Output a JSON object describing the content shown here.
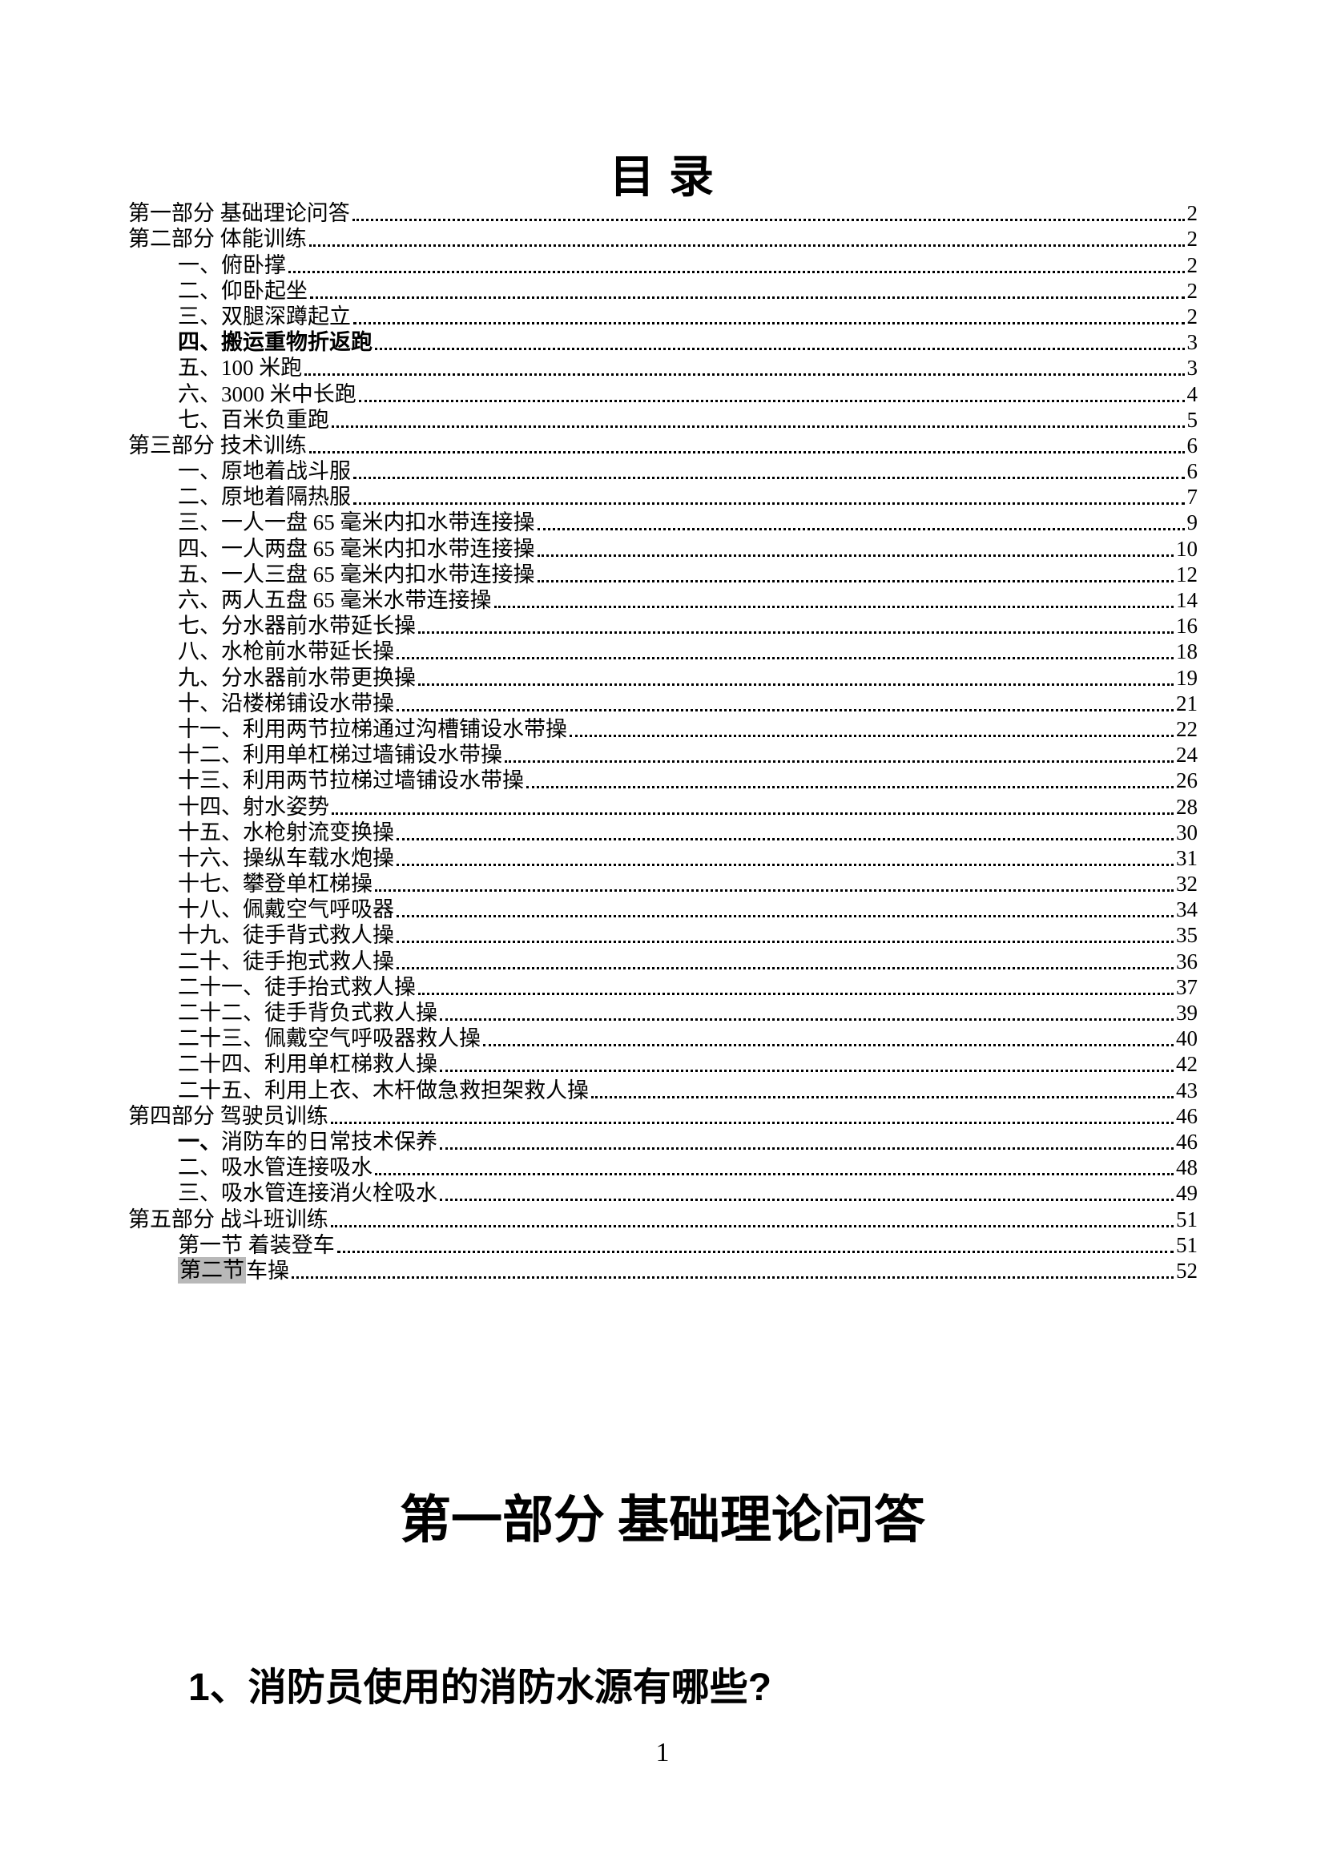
{
  "page": {
    "toc_title": "目 录",
    "footer_page_number": "1"
  },
  "styles": {
    "highlight_color": "#b8b8b8",
    "text_color": "#000000",
    "background_color": "#ffffff"
  },
  "toc": {
    "entries": [
      {
        "indent": 0,
        "prefix": "",
        "prefix_style": "",
        "bold": false,
        "text": "第一部分 基础理论问答",
        "page": "2"
      },
      {
        "indent": 0,
        "prefix": "",
        "prefix_style": "",
        "bold": false,
        "text": "第二部分 体能训练",
        "page": "2"
      },
      {
        "indent": 1,
        "prefix": "",
        "prefix_style": "",
        "bold": false,
        "text": "一、俯卧撑",
        "page": "2"
      },
      {
        "indent": 1,
        "prefix": "",
        "prefix_style": "",
        "bold": false,
        "text": "二、仰卧起坐",
        "page": "2"
      },
      {
        "indent": 1,
        "prefix": "",
        "prefix_style": "",
        "bold": false,
        "text": "三、双腿深蹲起立",
        "page": "2"
      },
      {
        "indent": 1,
        "prefix": "",
        "prefix_style": "",
        "bold": true,
        "text": "四、搬运重物折返跑",
        "page": "3"
      },
      {
        "indent": 1,
        "prefix": "",
        "prefix_style": "",
        "bold": false,
        "text": "五、100 米跑",
        "page": "3"
      },
      {
        "indent": 1,
        "prefix": "",
        "prefix_style": "",
        "bold": false,
        "text": "六、3000 米中长跑",
        "page": "4"
      },
      {
        "indent": 1,
        "prefix": "",
        "prefix_style": "",
        "bold": false,
        "text": "七、百米负重跑",
        "page": "5"
      },
      {
        "indent": 0,
        "prefix": "",
        "prefix_style": "",
        "bold": false,
        "text": "第三部分 技术训练",
        "page": "6"
      },
      {
        "indent": 1,
        "prefix": "",
        "prefix_style": "",
        "bold": false,
        "text": "一、原地着战斗服",
        "page": "6"
      },
      {
        "indent": 1,
        "prefix": "",
        "prefix_style": "",
        "bold": false,
        "text": "二、原地着隔热服",
        "page": "7"
      },
      {
        "indent": 1,
        "prefix": "",
        "prefix_style": "",
        "bold": false,
        "text": "三、一人一盘 65 毫米内扣水带连接操",
        "page": "9"
      },
      {
        "indent": 1,
        "prefix": "",
        "prefix_style": "",
        "bold": false,
        "text": "四、一人两盘 65 毫米内扣水带连接操",
        "page": "10"
      },
      {
        "indent": 1,
        "prefix": "",
        "prefix_style": "",
        "bold": false,
        "text": "五、一人三盘 65 毫米内扣水带连接操",
        "page": "12"
      },
      {
        "indent": 1,
        "prefix": "",
        "prefix_style": "",
        "bold": false,
        "text": "六、两人五盘 65 毫米水带连接操",
        "page": "14"
      },
      {
        "indent": 1,
        "prefix": "",
        "prefix_style": "",
        "bold": false,
        "text": "七、分水器前水带延长操",
        "page": "16"
      },
      {
        "indent": 1,
        "prefix": "",
        "prefix_style": "",
        "bold": false,
        "text": "八、水枪前水带延长操",
        "page": "18"
      },
      {
        "indent": 1,
        "prefix": "",
        "prefix_style": "",
        "bold": false,
        "text": "九、分水器前水带更换操",
        "page": "19"
      },
      {
        "indent": 1,
        "prefix": "",
        "prefix_style": "",
        "bold": false,
        "text": "十、沿楼梯铺设水带操",
        "page": "21"
      },
      {
        "indent": 1,
        "prefix": "",
        "prefix_style": "",
        "bold": false,
        "text": "十一、利用两节拉梯通过沟槽铺设水带操",
        "page": "22"
      },
      {
        "indent": 1,
        "prefix": "",
        "prefix_style": "",
        "bold": false,
        "text": "十二、利用单杠梯过墙铺设水带操",
        "page": "24"
      },
      {
        "indent": 1,
        "prefix": "",
        "prefix_style": "",
        "bold": false,
        "text": "十三、利用两节拉梯过墙铺设水带操",
        "page": "26"
      },
      {
        "indent": 1,
        "prefix": "",
        "prefix_style": "",
        "bold": false,
        "text": "十四、射水姿势",
        "page": "28"
      },
      {
        "indent": 1,
        "prefix": "",
        "prefix_style": "",
        "bold": false,
        "text": "十五、水枪射流变换操",
        "page": "30"
      },
      {
        "indent": 1,
        "prefix": "",
        "prefix_style": "",
        "bold": false,
        "text": "十六、操纵车载水炮操",
        "page": "31"
      },
      {
        "indent": 1,
        "prefix": "",
        "prefix_style": "",
        "bold": false,
        "text": "十七、攀登单杠梯操",
        "page": "32"
      },
      {
        "indent": 1,
        "prefix": "",
        "prefix_style": "",
        "bold": false,
        "text": "十八、佩戴空气呼吸器",
        "page": "34"
      },
      {
        "indent": 1,
        "prefix": "",
        "prefix_style": "",
        "bold": false,
        "text": "十九、徒手背式救人操",
        "page": "35"
      },
      {
        "indent": 1,
        "prefix": "",
        "prefix_style": "",
        "bold": false,
        "text": "二十、徒手抱式救人操",
        "page": "36"
      },
      {
        "indent": 1,
        "prefix": "",
        "prefix_style": "",
        "bold": false,
        "text": "二十一、徒手抬式救人操",
        "page": "37"
      },
      {
        "indent": 1,
        "prefix": "",
        "prefix_style": "",
        "bold": false,
        "text": "二十二、徒手背负式救人操",
        "page": "39"
      },
      {
        "indent": 1,
        "prefix": "",
        "prefix_style": "",
        "bold": false,
        "text": "二十三、佩戴空气呼吸器救人操",
        "page": "40"
      },
      {
        "indent": 1,
        "prefix": "",
        "prefix_style": "",
        "bold": false,
        "text": "二十四、利用单杠梯救人操",
        "page": "42"
      },
      {
        "indent": 1,
        "prefix": "",
        "prefix_style": "",
        "bold": false,
        "text": "二十五、利用上衣、木杆做急救担架救人操",
        "page": "43"
      },
      {
        "indent": 0,
        "prefix": "",
        "prefix_style": "",
        "bold": false,
        "text": "第四部分 驾驶员训练",
        "page": "46"
      },
      {
        "indent": 1,
        "prefix": "一、",
        "prefix_style": "bold",
        "bold": false,
        "text": "消防车的日常技术保养",
        "page": "46"
      },
      {
        "indent": 1,
        "prefix": "",
        "prefix_style": "",
        "bold": false,
        "text": "二、吸水管连接吸水",
        "page": "48"
      },
      {
        "indent": 1,
        "prefix": "",
        "prefix_style": "",
        "bold": false,
        "text": "三、吸水管连接消火栓吸水",
        "page": "49"
      },
      {
        "indent": 0,
        "prefix": "",
        "prefix_style": "",
        "bold": false,
        "text": "第五部分 战斗班训练",
        "page": "51"
      },
      {
        "indent": 1,
        "prefix": "",
        "prefix_style": "",
        "bold": false,
        "text": "第一节 着装登车",
        "page": "51"
      },
      {
        "indent": 1,
        "prefix": "第二节",
        "prefix_style": "highlight",
        "bold": false,
        "text": " 车操",
        "page": "52"
      }
    ]
  },
  "section": {
    "heading": "第一部分 基础理论问答",
    "question": "1、消防员使用的消防水源有哪些?"
  }
}
